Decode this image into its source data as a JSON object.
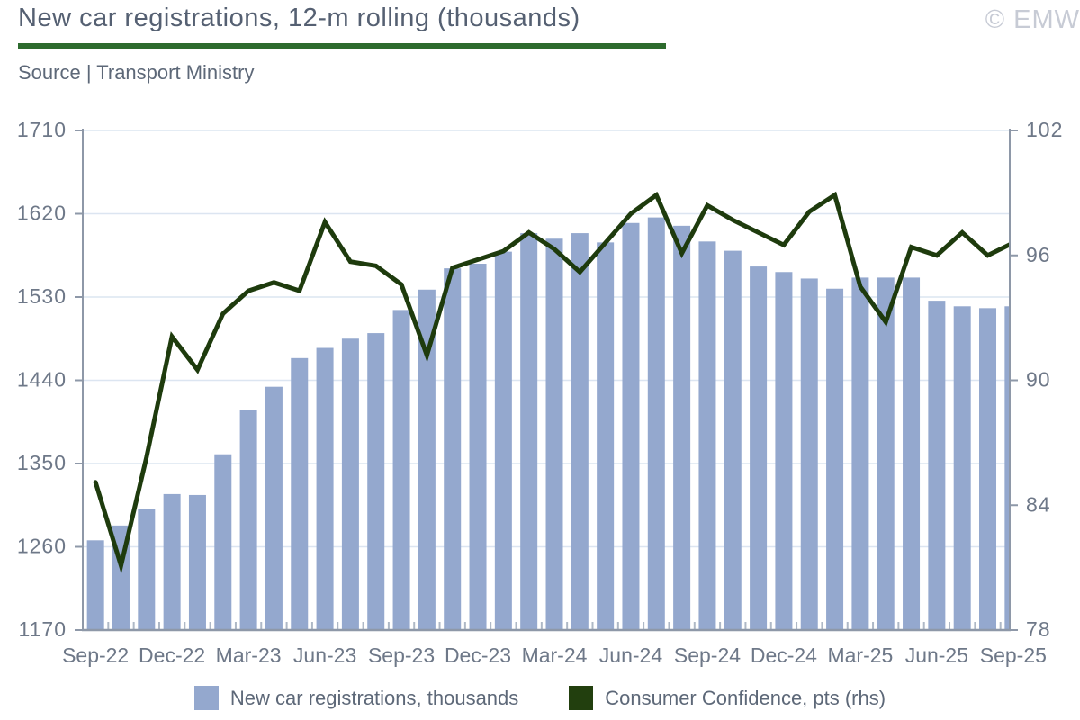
{
  "header": {
    "title": "New car registrations, 12-m rolling (thousands)",
    "watermark": "© EMW",
    "source": "Source | Transport Ministry"
  },
  "colors": {
    "title_text": "#556072",
    "source_text": "#5d6878",
    "watermark_text": "#c7cbd5",
    "title_rule_green": "#2d6b2e",
    "bar_fill": "#94a8ce",
    "line_stroke": "#1e3b0d",
    "gridline": "#dce5f1",
    "axis_line": "#8e98a8",
    "boundary_tick": "#aeb8c6",
    "tick_text": "#6e7888"
  },
  "chart_data": {
    "type": "bar",
    "subtype": "combo-bar-line-dual-axis",
    "title": "New car registrations, 12-m rolling (thousands)",
    "categories": [
      "Sep-22",
      "Oct-22",
      "Nov-22",
      "Dec-22",
      "Jan-23",
      "Feb-23",
      "Mar-23",
      "Apr-23",
      "May-23",
      "Jun-23",
      "Jul-23",
      "Aug-23",
      "Sep-23",
      "Oct-23",
      "Nov-23",
      "Dec-23",
      "Jan-24",
      "Feb-24",
      "Mar-24",
      "Apr-24",
      "May-24",
      "Jun-24",
      "Jul-24",
      "Aug-24",
      "Sep-24",
      "Oct-24",
      "Nov-24",
      "Dec-24",
      "Jan-25",
      "Feb-25",
      "Mar-25",
      "Apr-25",
      "May-25",
      "Jun-25",
      "Jul-25",
      "Aug-25",
      "Sep-25"
    ],
    "series": [
      {
        "name": "New car registrations, thousands",
        "type": "bar",
        "axis": "left",
        "values": [
          1267,
          1283,
          1301,
          1317,
          1316,
          1360,
          1408,
          1433,
          1464,
          1475,
          1485,
          1491,
          1516,
          1538,
          1561,
          1566,
          1579,
          1599,
          1593,
          1599,
          1589,
          1610,
          1616,
          1607,
          1590,
          1580,
          1563,
          1557,
          1550,
          1539,
          1551,
          1551,
          1551,
          1526,
          1520,
          1518,
          1520
        ]
      },
      {
        "name": "Consumer Confidence, pts (rhs)",
        "type": "line",
        "axis": "right",
        "values": [
          85.1,
          81.1,
          86.3,
          92.1,
          90.5,
          93.2,
          94.3,
          94.7,
          94.3,
          97.6,
          95.7,
          95.5,
          94.6,
          91.2,
          95.4,
          95.8,
          96.2,
          97.1,
          96.3,
          95.2,
          96.6,
          98.0,
          98.9,
          96.1,
          98.4,
          97.7,
          97.1,
          96.5,
          98.1,
          98.9,
          94.5,
          92.8,
          96.4,
          96.0,
          97.1,
          96.0,
          96.6
        ]
      }
    ],
    "left_axis": {
      "min": 1170,
      "max": 1710,
      "ticks": [
        1710,
        1620,
        1530,
        1440,
        1350,
        1260,
        1170
      ]
    },
    "right_axis": {
      "min": 78,
      "max": 102,
      "ticks": [
        102,
        96,
        90,
        84,
        78
      ]
    },
    "x_tick_interval": 3,
    "grid": true,
    "legend_position": "bottom"
  },
  "legend": {
    "items": [
      {
        "label": "New car registrations, thousands",
        "color": "#94a8ce"
      },
      {
        "label": "Consumer Confidence, pts (rhs)",
        "color": "#223f0e"
      }
    ]
  }
}
